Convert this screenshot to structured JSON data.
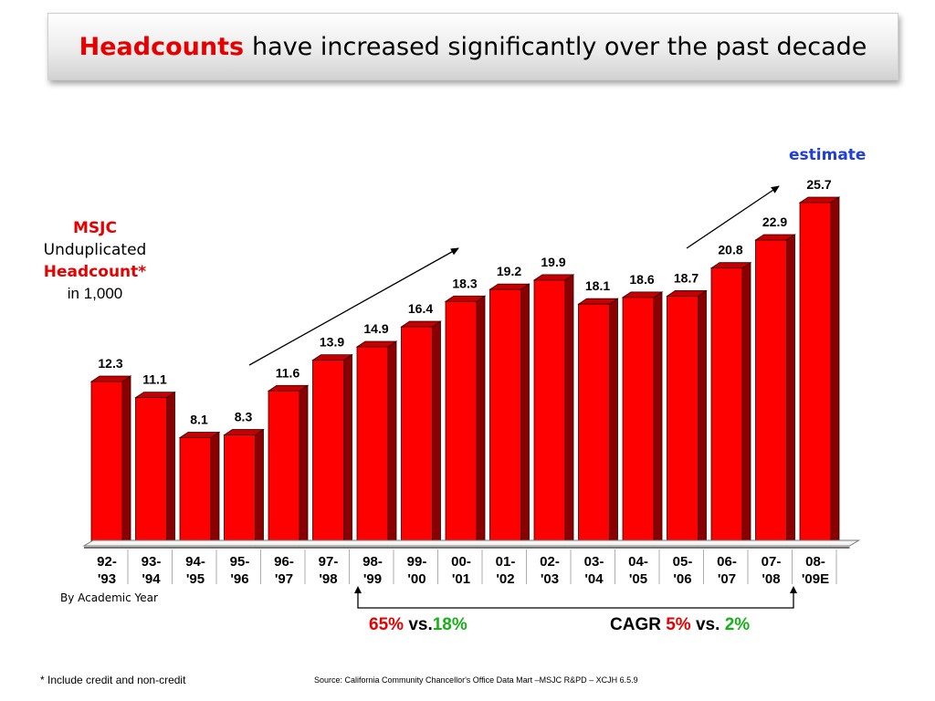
{
  "title": {
    "accent": "Headcounts",
    "rest": "have increased significantly over the past decade"
  },
  "ylabel": {
    "line1": "MSJC",
    "line2": "Unduplicated",
    "line3": "Headcount*",
    "line4": "in 1,000"
  },
  "estimate_label": "estimate",
  "by_year_label": "By Academic Year",
  "growth": {
    "a_pct": "65%",
    "a_vs": "vs.",
    "a_pct2": "18%",
    "b_prefix": "CAGR",
    "b_pct": "5%",
    "b_vs": "vs.",
    "b_pct2": "2%"
  },
  "footnote": "* Include credit and non-credit",
  "source": "Source: California Community Chancellor's Office Data Mart –MSJC R&PD – XCJH  6.5.9",
  "colors": {
    "bar_front": "#ff0000",
    "bar_side": "#8a0000",
    "bar_top": "#c40000",
    "title_accent": "#e60000",
    "estimate": "#1f3fd8",
    "green": "#18b018"
  },
  "chart_data": {
    "type": "bar",
    "categories": [
      [
        "92-",
        "'93"
      ],
      [
        "93-",
        "'94"
      ],
      [
        "94-",
        "'95"
      ],
      [
        "95-",
        "'96"
      ],
      [
        "96-",
        "'97"
      ],
      [
        "97-",
        "'98"
      ],
      [
        "98-",
        "'99"
      ],
      [
        "99-",
        "'00"
      ],
      [
        "00-",
        "'01"
      ],
      [
        "01-",
        "'02"
      ],
      [
        "02-",
        "'03"
      ],
      [
        "03-",
        "'04"
      ],
      [
        "04-",
        "'05"
      ],
      [
        "05-",
        "'06"
      ],
      [
        "06-",
        "'07"
      ],
      [
        "07-",
        "'08"
      ],
      [
        "08-",
        "'09E"
      ]
    ],
    "values": [
      12.3,
      11.1,
      8.1,
      8.3,
      11.6,
      13.9,
      14.9,
      16.4,
      18.3,
      19.2,
      19.9,
      18.1,
      18.6,
      18.7,
      20.8,
      22.9,
      25.7
    ],
    "value_labels": [
      "12.3",
      "11.1",
      "8.1",
      "8.3",
      "11.6",
      "13.9",
      "14.9",
      "16.4",
      "18.3",
      "19.2",
      "19.9",
      "18.1",
      "18.6",
      "18.7",
      "20.8",
      "22.9",
      "25.7"
    ],
    "ylim": [
      0,
      25.7
    ],
    "grid": false,
    "style": "3d"
  }
}
